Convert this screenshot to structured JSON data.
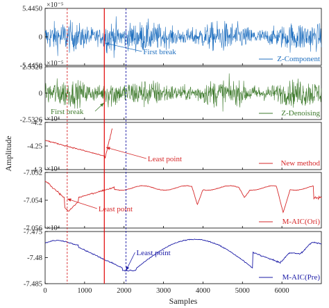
{
  "chart_data": [
    {
      "type": "line",
      "series": [
        {
          "name": "Z-Component",
          "color": "#1f6fbf",
          "kind": "noise"
        }
      ],
      "ylim": [
        -5.445e-05,
        5.445e-05
      ],
      "yticks": [
        "5.4450",
        "0",
        "-5.4450"
      ],
      "exponent": "×10⁻⁵",
      "annotation": {
        "text": "First break",
        "sample": 1520,
        "color": "#1f6fbf"
      }
    },
    {
      "type": "line",
      "series": [
        {
          "name": "Z-Denoising",
          "color": "#3e7a2c",
          "kind": "noise"
        }
      ],
      "ylim": [
        -2.5326e-05,
        2.5326e-05
      ],
      "yticks": [
        "2.5326",
        "0",
        "-2.5326"
      ],
      "exponent": "×10⁻⁵",
      "annotation": {
        "text": "First break",
        "sample": 1490,
        "color": "#3e7a2c"
      }
    },
    {
      "type": "line",
      "series": [
        {
          "name": "New method",
          "color": "#d62728",
          "kind": "trend",
          "x_end": 1700
        }
      ],
      "ylim": [
        -43000,
        -42000
      ],
      "yticks": [
        "-4.2",
        "-4.25",
        "-4.3"
      ],
      "exponent": "×10⁴",
      "annotation": {
        "text": "Least point",
        "sample": 1545,
        "color": "#d62728"
      }
    },
    {
      "type": "line",
      "series": [
        {
          "name": "M-AIC(Ori)",
          "color": "#d62728",
          "kind": "aic"
        }
      ],
      "ylim": [
        -70560,
        -70520
      ],
      "yticks": [
        "-7.052",
        "-7.054",
        "-7.056"
      ],
      "exponent": "×10⁴",
      "annotation": {
        "text": "Least point",
        "sample": 560,
        "color": "#d62728"
      }
    },
    {
      "type": "line",
      "series": [
        {
          "name": "M-AIC(Pre)",
          "color": "#1a1aa6",
          "kind": "aic2"
        }
      ],
      "ylim": [
        -74850,
        -74750
      ],
      "yticks": [
        "-7.475",
        "-7.48",
        "-7.485"
      ],
      "exponent": "×10⁴",
      "annotation": {
        "text": "Least point",
        "sample": 2050,
        "color": "#1a1aa6"
      }
    }
  ],
  "x_axis": {
    "label": "Samples",
    "range": [
      0,
      7000
    ],
    "ticks": [
      "0",
      "1000",
      "2000",
      "3000",
      "4000",
      "5000",
      "6000"
    ],
    "tick_values": [
      0,
      1000,
      2000,
      3000,
      4000,
      5000,
      6000
    ]
  },
  "y_axis_label": "Amplitude",
  "vertical_markers": [
    {
      "sample": 560,
      "color": "#d62728",
      "style": "dashed"
    },
    {
      "sample": 1500,
      "color": "#e00000",
      "style": "solid"
    },
    {
      "sample": 2050,
      "color": "#1a1aa6",
      "style": "dashed"
    }
  ]
}
